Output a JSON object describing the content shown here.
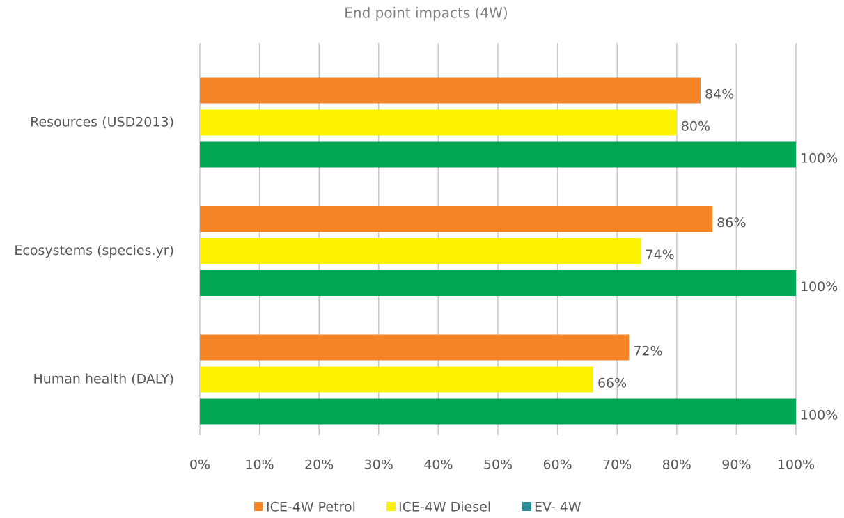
{
  "chart_data": {
    "type": "hbar",
    "title": "End point impacts (4W)",
    "categories": [
      "Resources (USD2013)",
      "Ecosystems (species.yr)",
      "Human health (DALY)"
    ],
    "series": [
      {
        "name": "ICE-4W Petrol",
        "color": "#f58426",
        "values": [
          84,
          86,
          72
        ],
        "value_labels": [
          "84%",
          "86%",
          "72%"
        ]
      },
      {
        "name": "ICE-4W Diesel",
        "color": "#fff200",
        "values": [
          80,
          74,
          66
        ],
        "value_labels": [
          "80%",
          "74%",
          "66%"
        ]
      },
      {
        "name": "EV- 4W",
        "color": "#00a651",
        "legend_color": "#2e8b9a",
        "values": [
          100,
          100,
          100
        ],
        "value_labels": [
          "100%",
          "100%",
          "100%"
        ]
      }
    ],
    "xlim": [
      0,
      100
    ],
    "xticks": [
      {
        "value": 0,
        "label": "0%"
      },
      {
        "value": 10,
        "label": "10%"
      },
      {
        "value": 20,
        "label": "20%"
      },
      {
        "value": 30,
        "label": "30%"
      },
      {
        "value": 40,
        "label": "40%"
      },
      {
        "value": 50,
        "label": "50%"
      },
      {
        "value": 60,
        "label": "60%"
      },
      {
        "value": 70,
        "label": "70%"
      },
      {
        "value": 80,
        "label": "80%"
      },
      {
        "value": 90,
        "label": "90%"
      },
      {
        "value": 100,
        "label": "100%"
      }
    ],
    "grid": true,
    "legend": "bottom"
  }
}
